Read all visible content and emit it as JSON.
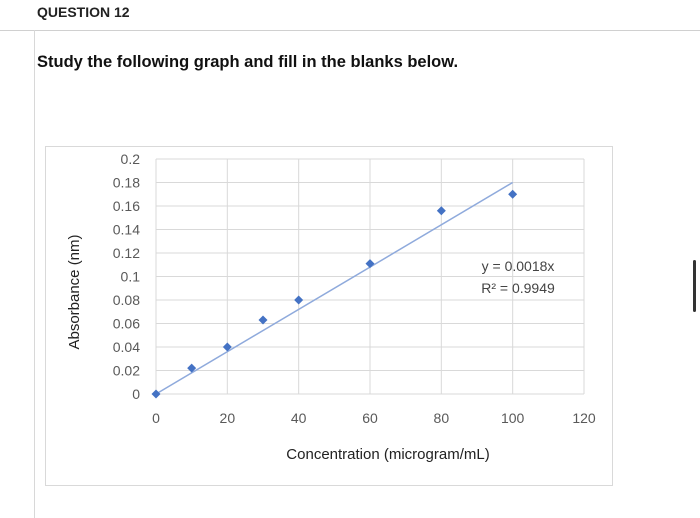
{
  "question": {
    "title": "QUESTION 12",
    "instruction": "Study the following graph and fill in the blanks below."
  },
  "chart_data": {
    "type": "scatter",
    "title": "",
    "xlabel": "Concentration (microgram/mL)",
    "ylabel": "Absorbance (nm)",
    "xlim": [
      0,
      120
    ],
    "ylim": [
      0,
      0.2
    ],
    "x_ticks": [
      "0",
      "20",
      "40",
      "60",
      "80",
      "100",
      "120"
    ],
    "y_ticks": [
      "0",
      "0.02",
      "0.04",
      "0.06",
      "0.08",
      "0.1",
      "0.12",
      "0.14",
      "0.16",
      "0.18",
      "0.2"
    ],
    "grid": true,
    "series": [
      {
        "x": [
          0,
          10,
          20,
          30,
          40,
          60,
          80,
          100
        ],
        "y": [
          0,
          0.022,
          0.04,
          0.063,
          0.08,
          0.111,
          0.156,
          0.17
        ]
      }
    ],
    "trendline": {
      "slope": 0.0018,
      "x_range": [
        0,
        100
      ]
    },
    "annotations": [
      "y = 0.0018x",
      "R² = 0.9949"
    ],
    "colors": {
      "marker": "#4472c4",
      "trendline": "#8faadc",
      "grid": "#d9d9d9"
    }
  }
}
